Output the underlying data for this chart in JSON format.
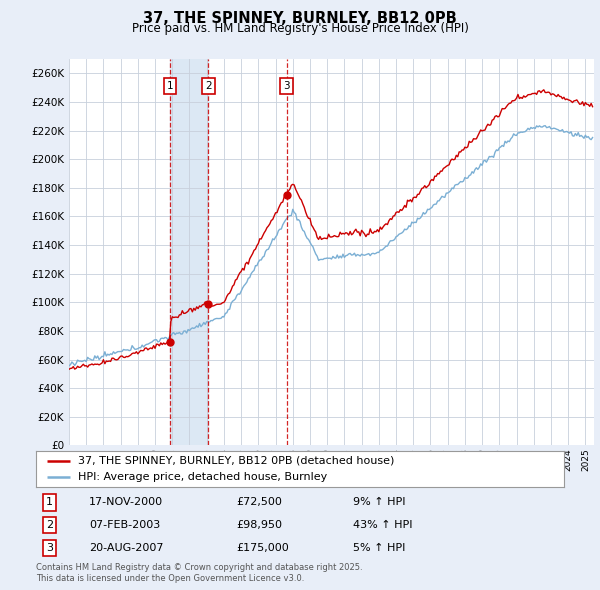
{
  "title": "37, THE SPINNEY, BURNLEY, BB12 0PB",
  "subtitle": "Price paid vs. HM Land Registry's House Price Index (HPI)",
  "background_color": "#e8eef8",
  "plot_background": "#ffffff",
  "grid_color": "#c8d0dc",
  "hpi_color": "#7bafd4",
  "price_color": "#cc0000",
  "shade_color": "#dce8f4",
  "ylim": [
    0,
    270000
  ],
  "xlim": [
    1995,
    2025.5
  ],
  "yticks": [
    0,
    20000,
    40000,
    60000,
    80000,
    100000,
    120000,
    140000,
    160000,
    180000,
    200000,
    220000,
    240000,
    260000
  ],
  "sales": [
    {
      "date_num": 2000.88,
      "price": 72500,
      "label": "1",
      "pct": "9%",
      "date_str": "17-NOV-2000"
    },
    {
      "date_num": 2003.1,
      "price": 98950,
      "label": "2",
      "pct": "43%",
      "date_str": "07-FEB-2003"
    },
    {
      "date_num": 2007.64,
      "price": 175000,
      "label": "3",
      "pct": "5%",
      "date_str": "20-AUG-2007"
    }
  ],
  "legend_line1": "37, THE SPINNEY, BURNLEY, BB12 0PB (detached house)",
  "legend_line2": "HPI: Average price, detached house, Burnley",
  "footnote": "Contains HM Land Registry data © Crown copyright and database right 2025.\nThis data is licensed under the Open Government Licence v3.0.",
  "table_rows": [
    [
      "1",
      "17-NOV-2000",
      "£72,500",
      "9% ↑ HPI"
    ],
    [
      "2",
      "07-FEB-2003",
      "£98,950",
      "43% ↑ HPI"
    ],
    [
      "3",
      "20-AUG-2007",
      "£175,000",
      "5% ↑ HPI"
    ]
  ]
}
